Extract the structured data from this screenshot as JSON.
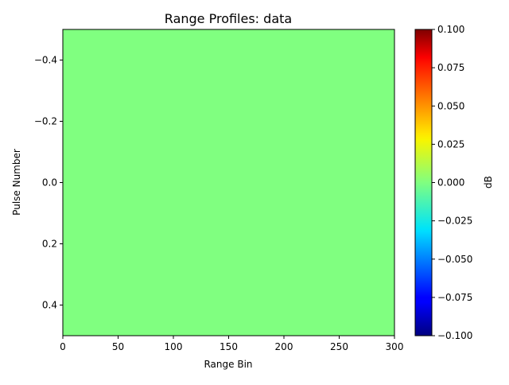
{
  "chart_data": {
    "type": "heatmap",
    "title": "Range Profiles: data",
    "xlabel": "Range Bin",
    "ylabel": "Pulse Number",
    "xlim": [
      0,
      300
    ],
    "ylim": [
      0.5,
      -0.5
    ],
    "y_inverted": true,
    "x_ticks": [
      "0",
      "50",
      "100",
      "150",
      "200",
      "250",
      "300"
    ],
    "y_ticks": [
      "−0.4",
      "−0.2",
      "0.0",
      "0.2",
      "0.4"
    ],
    "grid": false,
    "colormap": "jet",
    "fill_value": 0.0,
    "fill_color": "#80ff80",
    "colorbar": {
      "label": "dB",
      "range": [
        -0.1,
        0.1
      ],
      "ticks": [
        "−0.100",
        "−0.075",
        "−0.050",
        "−0.025",
        "0.000",
        "0.025",
        "0.050",
        "0.075",
        "0.100"
      ]
    }
  }
}
